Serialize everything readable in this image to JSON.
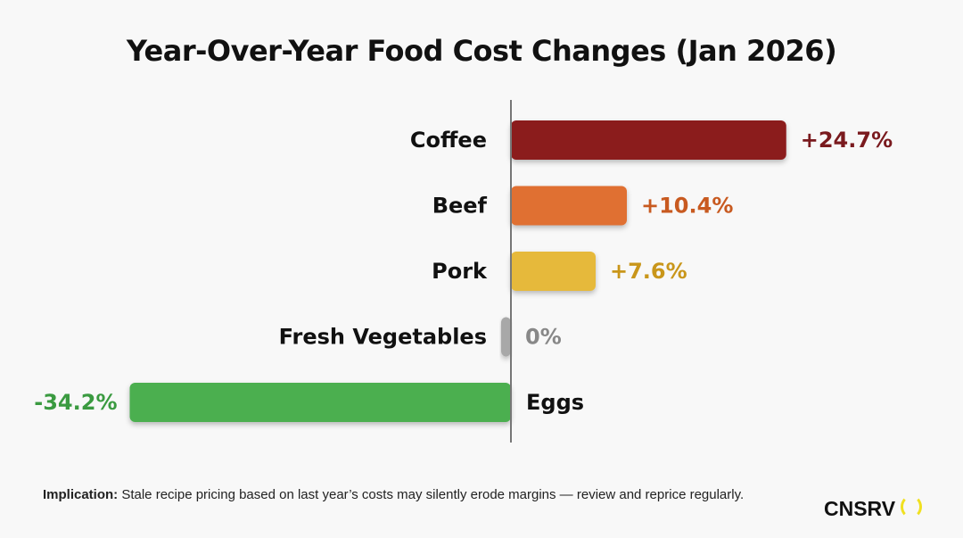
{
  "chart_data": {
    "type": "bar",
    "orientation": "horizontal",
    "title": "Year-Over-Year Food Cost Changes (Jan 2026)",
    "categories": [
      "Coffee",
      "Beef",
      "Pork",
      "Fresh Vegetables",
      "Eggs"
    ],
    "values": [
      24.7,
      10.4,
      7.6,
      0,
      -34.2
    ],
    "data_labels": [
      "+24.7%",
      "+10.4%",
      "+7.6%",
      "0%",
      "-34.2%"
    ],
    "colors": [
      "#8b1a1e",
      "#e07030",
      "#e6b93a",
      "#a8a8a8",
      "#4caf50"
    ],
    "label_colors": [
      "#7a1a1e",
      "#c85a20",
      "#c9961a",
      "#888888",
      "#3a9a40"
    ],
    "xlabel": "",
    "ylabel": "",
    "grid": false
  },
  "footer": {
    "label": "Implication:",
    "text": " Stale recipe pricing based on last year’s costs may silently erode margins — review and reprice regularly."
  },
  "logo": {
    "text": "CNSRV"
  }
}
